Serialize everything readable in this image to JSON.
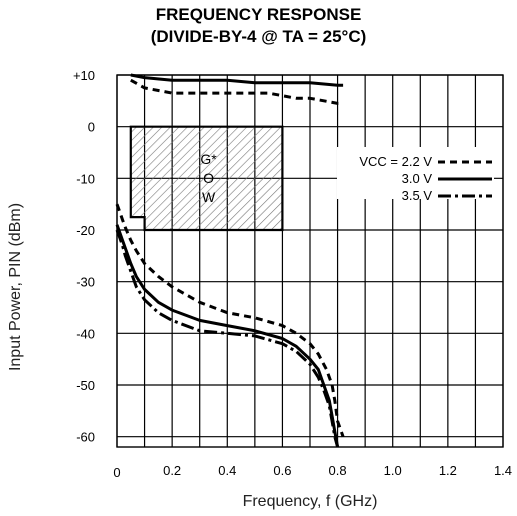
{
  "chart_data": {
    "type": "line",
    "title": "FREQUENCY RESPONSE",
    "subtitle": "(DIVIDE-BY-4 @ TA = 25°C)",
    "xlabel": "Frequency, f (GHz)",
    "ylabel": "Input Power, PIN (dBm)",
    "xlim": [
      0,
      1.4
    ],
    "ylim": [
      -62,
      10
    ],
    "x_tick_labels": [
      "0",
      "0.2",
      "0.4",
      "0.6",
      "0.8",
      "1.0",
      "1.2",
      "1.4"
    ],
    "y_tick_labels": [
      "+10",
      "0",
      "-10",
      "-20",
      "-30",
      "-40",
      "-50",
      "-60"
    ],
    "grid": true,
    "legend_placement": "right",
    "gow_label": [
      "G*",
      "O",
      "W"
    ],
    "gow_region": {
      "x_range": [
        0.05,
        0.6
      ],
      "y_range": [
        -20,
        0
      ],
      "notch_x": 0.1,
      "notch_y": -17.5
    },
    "series": [
      {
        "name": "VCC = 2.2 V",
        "style": "dashed",
        "upper": {
          "x": [
            0.05,
            0.1,
            0.15,
            0.2,
            0.3,
            0.4,
            0.5,
            0.55,
            0.6,
            0.65,
            0.7,
            0.75,
            0.8,
            0.82
          ],
          "y": [
            9,
            7.5,
            7,
            6.5,
            6.5,
            6.5,
            6.5,
            6.5,
            6,
            5.5,
            5.5,
            5,
            4.5,
            4.5
          ]
        },
        "lower": {
          "x": [
            0.0,
            0.01,
            0.02,
            0.03,
            0.05,
            0.07,
            0.1,
            0.15,
            0.2,
            0.3,
            0.4,
            0.5,
            0.6,
            0.65,
            0.7,
            0.73,
            0.76,
            0.78,
            0.79,
            0.8,
            0.82
          ],
          "y": [
            -15,
            -16.5,
            -18,
            -19.5,
            -22,
            -24,
            -26.5,
            -29,
            -31,
            -34,
            -36,
            -37,
            -38.5,
            -40,
            -42,
            -44,
            -47,
            -50,
            -53,
            -57,
            -60
          ]
        }
      },
      {
        "name": "3.0 V",
        "style": "solid",
        "upper": {
          "x": [
            0.05,
            0.1,
            0.2,
            0.3,
            0.4,
            0.5,
            0.6,
            0.7,
            0.8,
            0.82
          ],
          "y": [
            10,
            9.5,
            9,
            9,
            9,
            8.5,
            8.5,
            8.5,
            8,
            8
          ]
        },
        "lower": {
          "x": [
            0.0,
            0.01,
            0.02,
            0.03,
            0.05,
            0.07,
            0.1,
            0.15,
            0.2,
            0.3,
            0.4,
            0.5,
            0.6,
            0.65,
            0.7,
            0.73,
            0.75,
            0.77,
            0.78,
            0.79,
            0.8
          ],
          "y": [
            -19,
            -20.5,
            -22,
            -23.5,
            -26.5,
            -29,
            -31.5,
            -34,
            -35.5,
            -37.5,
            -38.5,
            -39.5,
            -41,
            -42.5,
            -45,
            -47,
            -50,
            -53,
            -56,
            -59,
            -62
          ]
        }
      },
      {
        "name": "3.5 V",
        "style": "dash-dot",
        "lower": {
          "x": [
            0.0,
            0.01,
            0.02,
            0.03,
            0.05,
            0.07,
            0.1,
            0.15,
            0.2,
            0.3,
            0.4,
            0.5,
            0.6,
            0.65,
            0.7,
            0.73,
            0.75,
            0.77,
            0.78,
            0.79,
            0.8
          ],
          "y": [
            -20,
            -21.5,
            -23,
            -25,
            -28,
            -31,
            -33.5,
            -36,
            -37.5,
            -39.5,
            -40,
            -40.5,
            -42,
            -43.5,
            -46,
            -48.5,
            -51,
            -54,
            -57,
            -60,
            -62
          ]
        }
      }
    ]
  }
}
